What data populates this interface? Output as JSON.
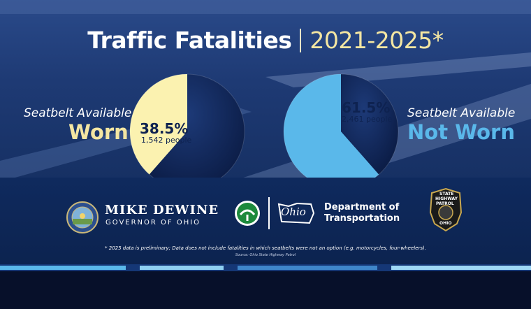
{
  "title": {
    "main": "Traffic Fatalities",
    "years": "2021-2025*"
  },
  "chart_data": [
    {
      "type": "pie",
      "title": "",
      "slices": [
        {
          "label": "Worn",
          "value": 38.5,
          "people": "1,542 people",
          "color": "#fbf2b0"
        },
        {
          "label": "Not Worn",
          "value": 61.5,
          "color": "#0e2250"
        }
      ],
      "highlight_label": "38.5%"
    },
    {
      "type": "pie",
      "title": "",
      "slices": [
        {
          "label": "Not Worn",
          "value": 61.5,
          "people": "2,461 people",
          "color": "#5ab8ea"
        },
        {
          "label": "Worn",
          "value": 38.5,
          "color": "#0e2250"
        }
      ],
      "highlight_label": "61.5%"
    }
  ],
  "left_label": {
    "line1": "Seatbelt Available",
    "line2": "Worn",
    "percent": "38.5%",
    "people": "1,542 people",
    "color": "#f4e6a2"
  },
  "right_label": {
    "line1": "Seatbelt Available",
    "line2": "Not Worn",
    "percent": "61.5%",
    "people": "2,461 people",
    "color": "#5ab8ea"
  },
  "logos": {
    "governor_name": "MIKE DEWINE",
    "governor_title": "GOVERNOR OF OHIO",
    "odot_script": "Ohio",
    "odot_line1": "Department of",
    "odot_line2": "Transportation",
    "patrol_line1": "STATE",
    "patrol_line2": "HIGHWAY",
    "patrol_line3": "PATROL",
    "patrol_line4": "OHIO"
  },
  "footnote": "* 2025 data is preliminary; Data does not include fatalities in which seatbelts were not an option (e.g. motorcycles, four-wheelers).",
  "source": "Source: Ohio State Highway Patrol"
}
